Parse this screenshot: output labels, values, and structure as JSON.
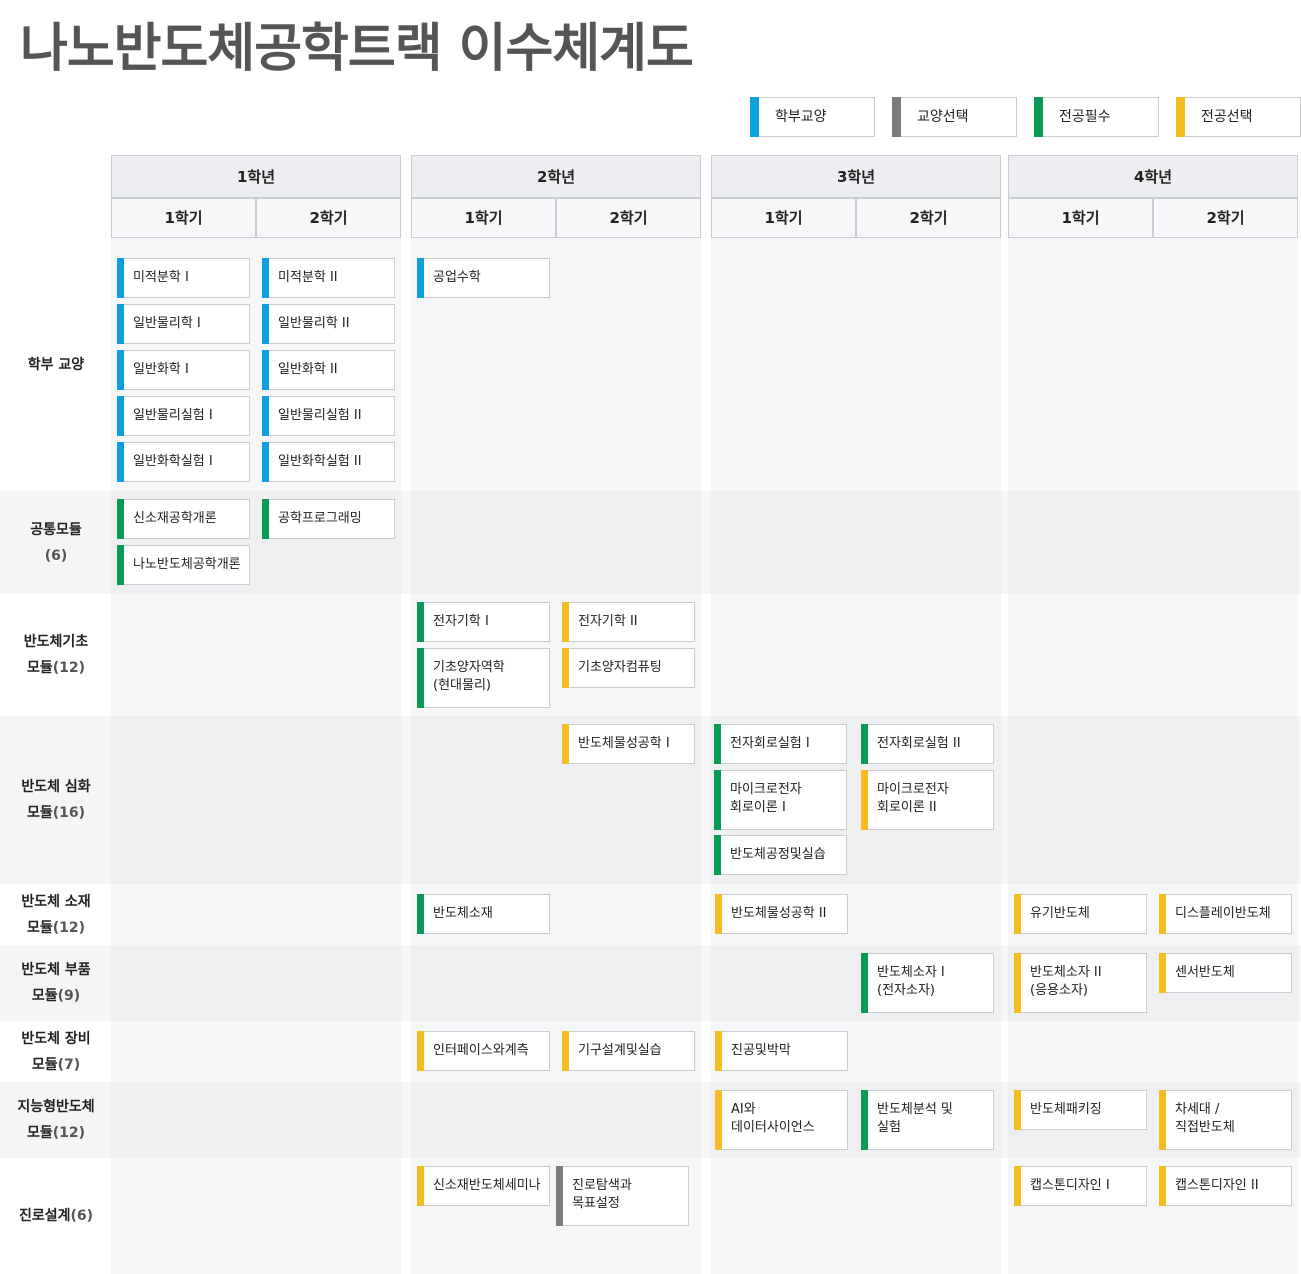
{
  "title": "나노반도체공학트랙 이수체계도",
  "colors": {
    "liberal_required": "#0ea0dc",
    "liberal_elective": "#7b7b7b",
    "major_required": "#0a9a55",
    "major_elective": "#f5bd1f"
  },
  "legend": [
    {
      "label": "학부교양",
      "color": "#0ea0dc"
    },
    {
      "label": "교양선택",
      "color": "#7b7b7b"
    },
    {
      "label": "전공필수",
      "color": "#0a9a55"
    },
    {
      "label": "전공선택",
      "color": "#f5bd1f"
    }
  ],
  "years": [
    "1학년",
    "2학년",
    "3학년",
    "4학년"
  ],
  "semesters": [
    "1학기",
    "2학기"
  ],
  "rows": [
    {
      "label": "학부 교양",
      "sub": ""
    },
    {
      "label": "공통모듈",
      "sub": "(6)"
    },
    {
      "label": "반도체기초",
      "label2": "모듈",
      "sub": "(12)"
    },
    {
      "label": "반도체 심화",
      "label2": "모듈",
      "sub": "(16)"
    },
    {
      "label": "반도체 소재",
      "label2": "모듈",
      "sub": "(12)"
    },
    {
      "label": "반도체 부품",
      "label2": "모듈",
      "sub": "(9)"
    },
    {
      "label": "반도체 장비",
      "label2": "모듈",
      "sub": "(7)"
    },
    {
      "label": "지능형반도체",
      "label2": "모듈",
      "sub": "(12)"
    },
    {
      "label": "진로설계",
      "sub": "(6)"
    }
  ],
  "courses": [
    {
      "name": "미적분학 I",
      "type": "liberal_required"
    },
    {
      "name": "일반물리학 I",
      "type": "liberal_required"
    },
    {
      "name": "일반화학 I",
      "type": "liberal_required"
    },
    {
      "name": "일반물리실험 I",
      "type": "liberal_required"
    },
    {
      "name": "일반화학실험 I",
      "type": "liberal_required"
    },
    {
      "name": "미적분학 II",
      "type": "liberal_required"
    },
    {
      "name": "일반물리학 II",
      "type": "liberal_required"
    },
    {
      "name": "일반화학 II",
      "type": "liberal_required"
    },
    {
      "name": "일반물리실험 II",
      "type": "liberal_required"
    },
    {
      "name": "일반화학실험 II",
      "type": "liberal_required"
    },
    {
      "name": "공업수학",
      "type": "liberal_required"
    },
    {
      "name": "신소재공학개론",
      "type": "major_required"
    },
    {
      "name": "나노반도체공학개론",
      "type": "major_required"
    },
    {
      "name": "공학프로그래밍",
      "type": "major_required"
    },
    {
      "name": "전자기학 I",
      "type": "major_required"
    },
    {
      "name": "기초양자역학\n(현대물리)",
      "type": "major_required"
    },
    {
      "name": "전자기학 II",
      "type": "major_elective"
    },
    {
      "name": "기초양자컴퓨팅",
      "type": "major_elective"
    },
    {
      "name": "반도체물성공학 I",
      "type": "major_elective"
    },
    {
      "name": "전자회로실험 I",
      "type": "major_required"
    },
    {
      "name": "마이크로전자\n회로이론 I",
      "type": "major_required"
    },
    {
      "name": "반도체공정및실습",
      "type": "major_required"
    },
    {
      "name": "전자회로실험 II",
      "type": "major_required"
    },
    {
      "name": "마이크로전자\n회로이론 II",
      "type": "major_elective"
    },
    {
      "name": "반도체소재",
      "type": "major_required"
    },
    {
      "name": "반도체물성공학 II",
      "type": "major_elective"
    },
    {
      "name": "유기반도체",
      "type": "major_elective"
    },
    {
      "name": "디스플레이반도체",
      "type": "major_elective"
    },
    {
      "name": "반도체소자 I\n(전자소자)",
      "type": "major_required"
    },
    {
      "name": "반도체소자 II\n(응용소자)",
      "type": "major_elective"
    },
    {
      "name": "센서반도체",
      "type": "major_elective"
    },
    {
      "name": "인터페이스와계측",
      "type": "major_elective"
    },
    {
      "name": "기구설계및실습",
      "type": "major_elective"
    },
    {
      "name": "진공및박막",
      "type": "major_elective"
    },
    {
      "name": "AI와\n데이터사이언스",
      "type": "major_elective"
    },
    {
      "name": "반도체분석 및\n실험",
      "type": "major_required"
    },
    {
      "name": "반도체패키징",
      "type": "major_elective"
    },
    {
      "name": "차세대 /\n직접반도체",
      "type": "major_elective"
    },
    {
      "name": "신소재반도체세미나",
      "type": "major_elective"
    },
    {
      "name": "진로탐색과\n목표설정",
      "type": "liberal_elective"
    },
    {
      "name": "캡스톤디자인 I",
      "type": "major_elective"
    },
    {
      "name": "캡스톤디자인 II",
      "type": "major_elective"
    }
  ]
}
